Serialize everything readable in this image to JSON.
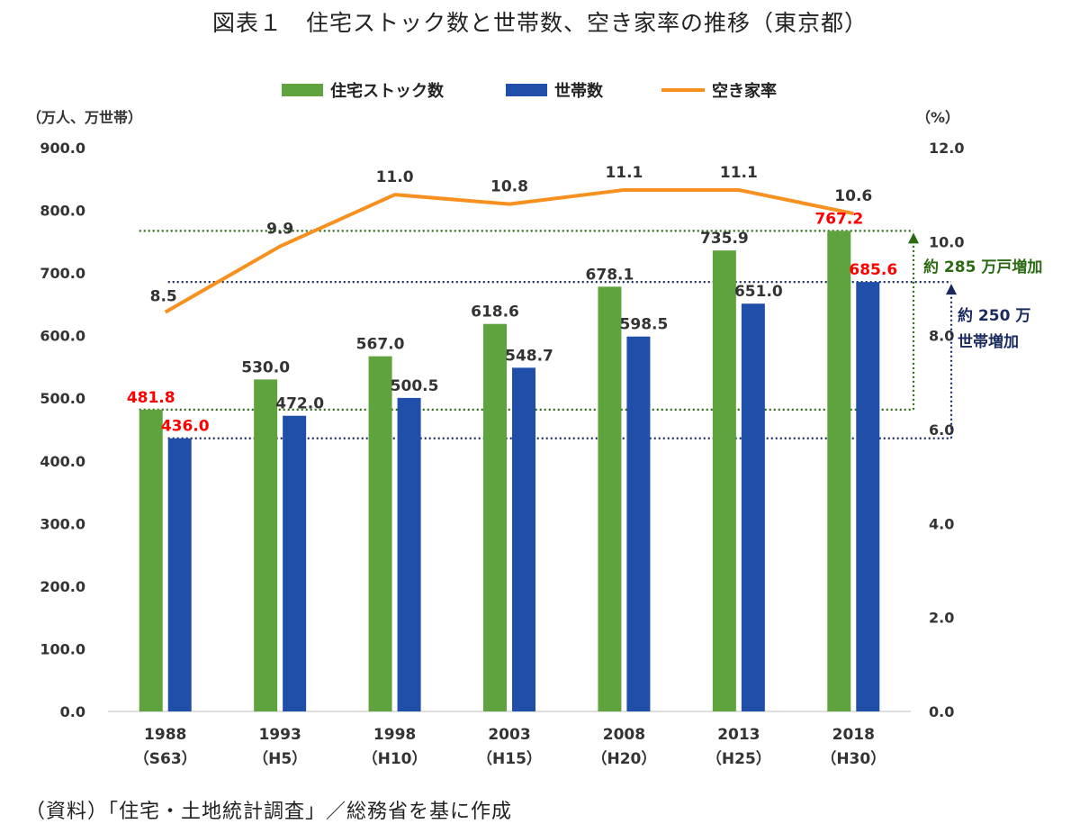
{
  "title": "図表１　住宅ストック数と世帯数、空き家率の推移（東京都）",
  "source": "（資料）「住宅・土地統計調査」／総務省を基に作成",
  "chart_data": {
    "type": "bar",
    "categories": [
      "1988",
      "1993",
      "1998",
      "2003",
      "2008",
      "2013",
      "2018"
    ],
    "sub_categories": [
      "（S63）",
      "（H5）",
      "（H10）",
      "（H15）",
      "（H20）",
      "（H25）",
      "（H30）"
    ],
    "series": [
      {
        "name": "住宅ストック数",
        "type": "bar",
        "axis": "left",
        "color": "#5fa33e",
        "values": [
          481.8,
          530.0,
          567.0,
          618.6,
          678.1,
          735.9,
          767.2
        ],
        "labels": [
          "481.8",
          "530.0",
          "567.0",
          "618.6",
          "678.1",
          "735.9",
          "767.2"
        ]
      },
      {
        "name": "世帯数",
        "type": "bar",
        "axis": "left",
        "color": "#1f4fa8",
        "values": [
          436.0,
          472.0,
          500.5,
          548.7,
          598.5,
          651.0,
          685.6
        ],
        "labels": [
          "436.0",
          "472.0",
          "500.5",
          "548.7",
          "598.5",
          "651.0",
          "685.6"
        ]
      },
      {
        "name": "空き家率",
        "type": "line",
        "axis": "right",
        "color": "#f7901e",
        "values": [
          8.5,
          9.9,
          11.0,
          10.8,
          11.1,
          11.1,
          10.6
        ],
        "labels": [
          "8.5",
          "9.9",
          "11.0",
          "10.8",
          "11.1",
          "11.1",
          "10.6"
        ]
      }
    ],
    "highlight_labels": {
      "stock_first": 0,
      "stock_last": 6,
      "households_first": 0,
      "households_last": 6,
      "color": "#ff0000"
    },
    "left_axis": {
      "unit": "（万人、万世帯）",
      "ylim": [
        0,
        900
      ],
      "ticks": [
        "0.0",
        "100.0",
        "200.0",
        "300.0",
        "400.0",
        "500.0",
        "600.0",
        "700.0",
        "800.0",
        "900.0"
      ]
    },
    "right_axis": {
      "unit": "（%）",
      "ylim": [
        0,
        12
      ],
      "ticks": [
        "0.0",
        "2.0",
        "4.0",
        "6.0",
        "8.0",
        "10.0",
        "12.0"
      ]
    },
    "legend": {
      "position": "top-center"
    },
    "grid": false,
    "annotations": [
      {
        "text": "約 285 万戸増加",
        "color": "#2a6a12",
        "from": 481.8,
        "to": 767.2
      },
      {
        "text_lines": [
          "約 250 万",
          "世帯増加"
        ],
        "color": "#1a2a5e",
        "from": 436.0,
        "to": 685.6
      }
    ]
  }
}
